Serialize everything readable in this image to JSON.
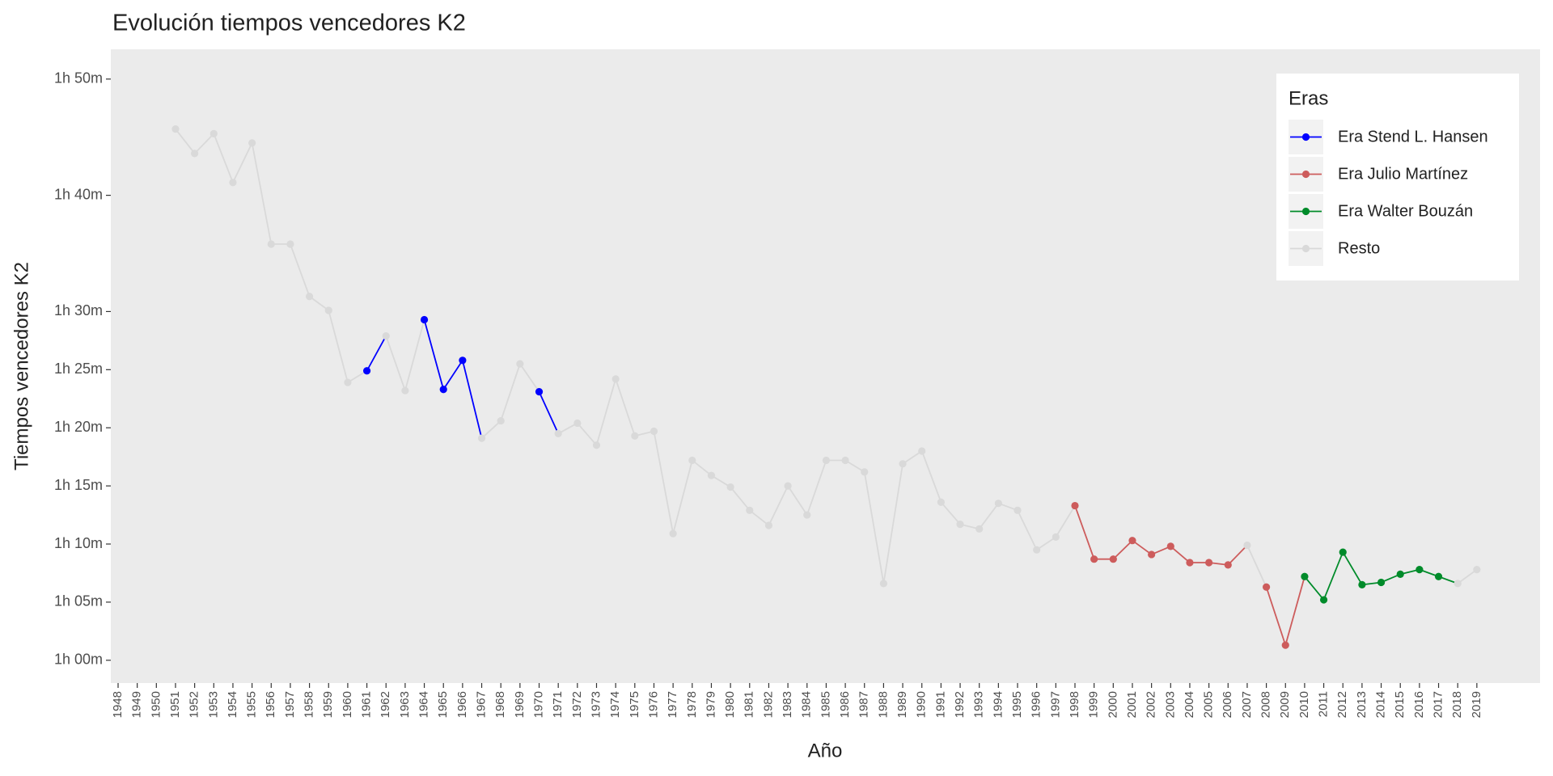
{
  "chart_data": {
    "type": "line",
    "title": "Evolución tiempos vencedores K2",
    "x_label": "Año",
    "y_label": "Tiempos vencedores K2",
    "categories": [
      "1948",
      "1949",
      "1950",
      "1951",
      "1952",
      "1953",
      "1954",
      "1955",
      "1956",
      "1957",
      "1958",
      "1959",
      "1960",
      "1961",
      "1962",
      "1963",
      "1964",
      "1965",
      "1966",
      "1967",
      "1968",
      "1969",
      "1970",
      "1971",
      "1972",
      "1973",
      "1974",
      "1975",
      "1976",
      "1977",
      "1978",
      "1979",
      "1980",
      "1981",
      "1982",
      "1983",
      "1984",
      "1985",
      "1986",
      "1987",
      "1988",
      "1989",
      "1990",
      "1991",
      "1992",
      "1993",
      "1994",
      "1995",
      "1996",
      "1997",
      "1998",
      "1999",
      "2000",
      "2001",
      "2002",
      "2003",
      "2004",
      "2005",
      "2006",
      "2007",
      "2008",
      "2009",
      "2010",
      "2011",
      "2012",
      "2013",
      "2014",
      "2015",
      "2016",
      "2017",
      "2018",
      "2019"
    ],
    "series": [
      {
        "name": "Era Stend L. Hansen",
        "color": "#0000ff",
        "values": [
          null,
          null,
          null,
          null,
          null,
          null,
          null,
          null,
          null,
          null,
          null,
          null,
          null,
          84.9,
          null,
          null,
          89.3,
          83.3,
          85.8,
          null,
          null,
          null,
          83.1,
          null,
          null,
          null,
          null,
          null,
          null,
          null,
          null,
          null,
          null,
          null,
          null,
          null,
          null,
          null,
          null,
          null,
          null,
          null,
          null,
          null,
          null,
          null,
          null,
          null,
          null,
          null,
          null,
          null,
          null,
          null,
          null,
          null,
          null,
          null,
          null,
          null,
          null,
          null,
          null,
          null,
          null,
          null,
          null,
          null,
          null,
          null,
          null,
          null
        ]
      },
      {
        "name": "Era Julio Martínez",
        "color": "#cd5c5c",
        "values": [
          null,
          null,
          null,
          null,
          null,
          null,
          null,
          null,
          null,
          null,
          null,
          null,
          null,
          null,
          null,
          null,
          null,
          null,
          null,
          null,
          null,
          null,
          null,
          null,
          null,
          null,
          null,
          null,
          null,
          null,
          null,
          null,
          null,
          null,
          null,
          null,
          null,
          null,
          null,
          null,
          null,
          null,
          null,
          null,
          null,
          null,
          null,
          null,
          null,
          null,
          73.3,
          68.7,
          68.7,
          70.3,
          69.1,
          69.8,
          68.4,
          68.4,
          68.2,
          null,
          66.3,
          61.3,
          null,
          null,
          null,
          null,
          null,
          null,
          null,
          null,
          null,
          null
        ]
      },
      {
        "name": "Era Walter Bouzán",
        "color": "#008b2a",
        "values": [
          null,
          null,
          null,
          null,
          null,
          null,
          null,
          null,
          null,
          null,
          null,
          null,
          null,
          null,
          null,
          null,
          null,
          null,
          null,
          null,
          null,
          null,
          null,
          null,
          null,
          null,
          null,
          null,
          null,
          null,
          null,
          null,
          null,
          null,
          null,
          null,
          null,
          null,
          null,
          null,
          null,
          null,
          null,
          null,
          null,
          null,
          null,
          null,
          null,
          null,
          null,
          null,
          null,
          null,
          null,
          null,
          null,
          null,
          null,
          null,
          null,
          null,
          67.2,
          65.2,
          69.3,
          66.5,
          66.7,
          67.4,
          67.8,
          67.2,
          null,
          null
        ]
      },
      {
        "name": "Resto",
        "color": "#d9d9d9",
        "values": [
          null,
          null,
          null,
          105.7,
          103.6,
          105.3,
          101.1,
          104.5,
          95.8,
          95.8,
          91.3,
          90.1,
          83.9,
          null,
          87.9,
          83.2,
          null,
          null,
          null,
          79.1,
          80.6,
          85.5,
          null,
          79.5,
          80.4,
          78.5,
          84.2,
          79.3,
          79.7,
          70.9,
          77.2,
          75.9,
          74.9,
          72.9,
          71.6,
          75.0,
          72.5,
          77.2,
          77.2,
          76.2,
          66.6,
          76.9,
          78.0,
          73.6,
          71.7,
          71.3,
          73.5,
          72.9,
          69.5,
          70.6,
          null,
          null,
          null,
          null,
          null,
          null,
          null,
          null,
          null,
          69.9,
          null,
          null,
          null,
          null,
          null,
          null,
          null,
          null,
          null,
          null,
          66.6,
          67.8
        ]
      }
    ],
    "ylim": [
      58.04,
      112.56
    ],
    "yticks": [
      {
        "value": 60,
        "label": "1h 00m"
      },
      {
        "value": 65,
        "label": "1h 05m"
      },
      {
        "value": 70,
        "label": "1h 10m"
      },
      {
        "value": 75,
        "label": "1h 15m"
      },
      {
        "value": 80,
        "label": "1h 20m"
      },
      {
        "value": 85,
        "label": "1h 25m"
      },
      {
        "value": 90,
        "label": "1h 30m"
      },
      {
        "value": 100,
        "label": "1h 40m"
      },
      {
        "value": 110,
        "label": "1h 50m"
      }
    ],
    "grid": false,
    "legend": {
      "title": "Eras",
      "position": "top-right"
    }
  }
}
